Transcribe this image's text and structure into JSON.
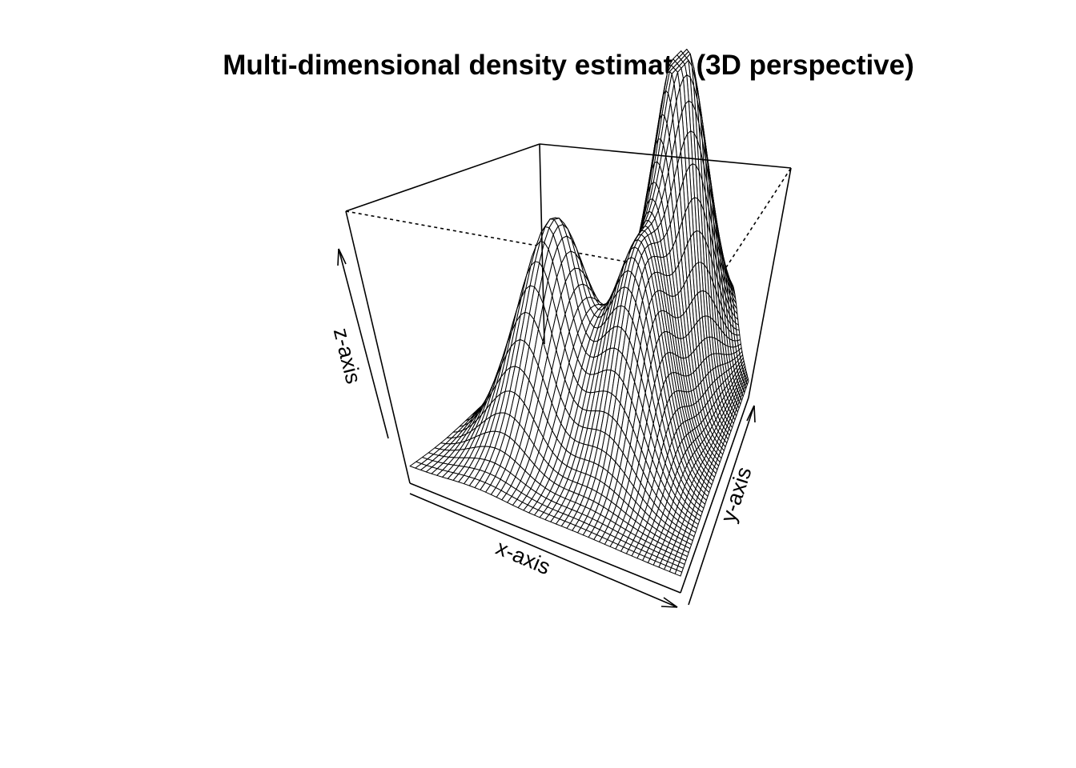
{
  "chart_data": {
    "type": "surface",
    "title": "Multi-dimensional density estimate (3D perspective)",
    "xlabel": "x-axis",
    "ylabel": "y-axis",
    "zlabel": "z-axis",
    "ticks": false,
    "box": true,
    "grid_lines": 50,
    "peaks": [
      {
        "x": 0.25,
        "y": 0.3,
        "height": 0.63,
        "spread": 0.11
      },
      {
        "x": 0.6,
        "y": 0.4,
        "height": 0.57,
        "spread": 0.13
      },
      {
        "x": 0.5,
        "y": 0.72,
        "height": 1.0,
        "spread": 0.13
      }
    ],
    "line_color": "#000000",
    "face_color": "#ffffff"
  }
}
